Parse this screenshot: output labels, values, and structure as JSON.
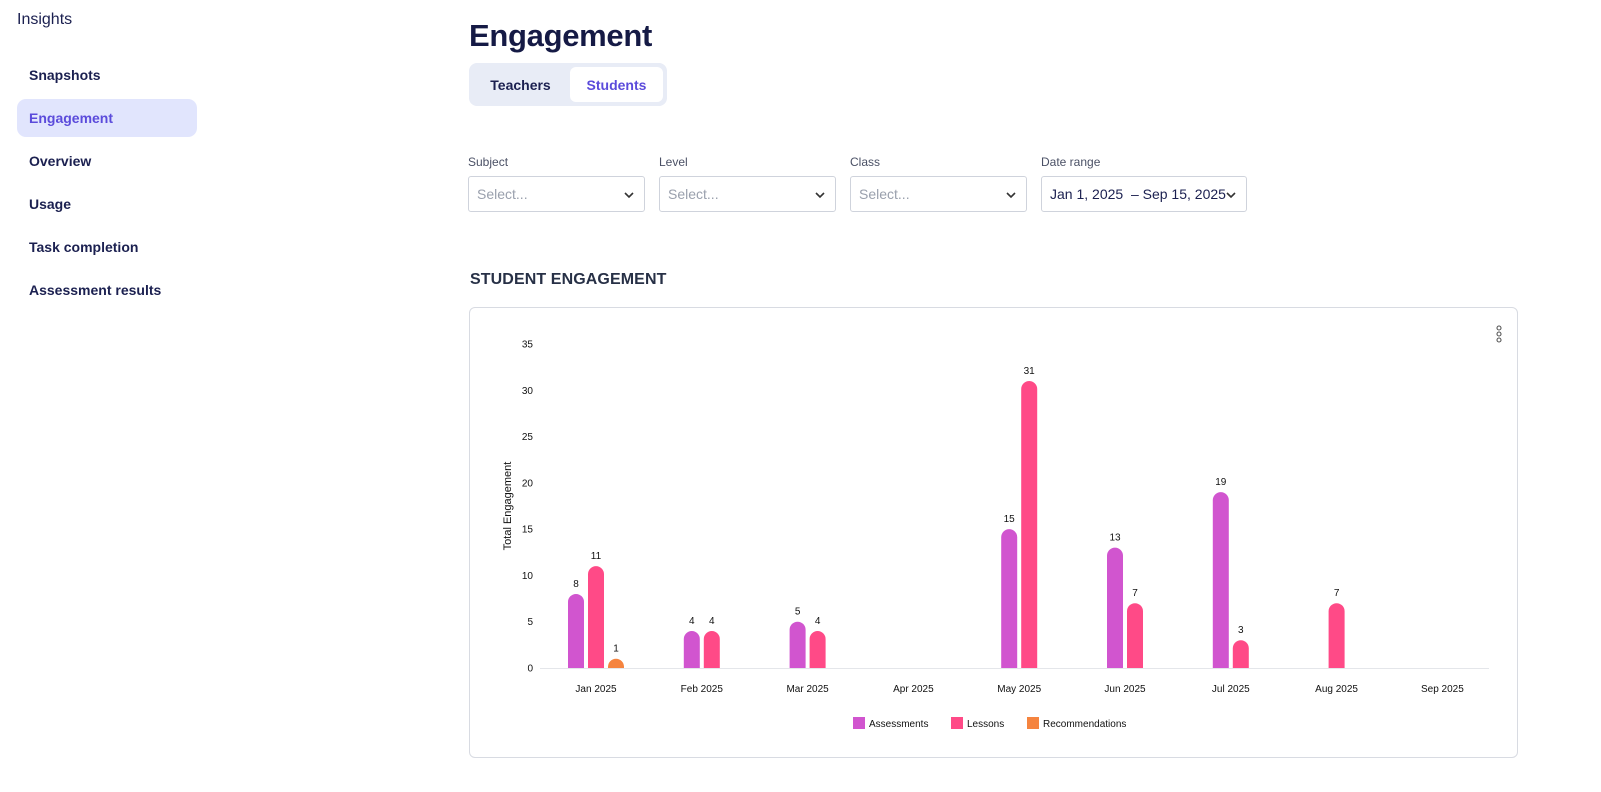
{
  "sidebar": {
    "brand": "Insights",
    "items": [
      {
        "label": "Snapshots"
      },
      {
        "label": "Engagement"
      },
      {
        "label": "Overview"
      },
      {
        "label": "Usage"
      },
      {
        "label": "Task completion"
      },
      {
        "label": "Assessment results"
      }
    ],
    "active_index": 1
  },
  "header": {
    "title": "Engagement",
    "tabs": [
      {
        "label": "Teachers"
      },
      {
        "label": "Students"
      }
    ],
    "active_tab": "Students"
  },
  "filters": {
    "subject": {
      "label": "Subject",
      "placeholder": "Select..."
    },
    "level": {
      "label": "Level",
      "placeholder": "Select..."
    },
    "class": {
      "label": "Class",
      "placeholder": "Select..."
    },
    "date_range": {
      "label": "Date range",
      "value": "Jan 1, 2025  – Sep 15, 2025"
    }
  },
  "section": {
    "title": "STUDENT ENGAGEMENT"
  },
  "icons": {
    "chevron": "chevron-down-icon",
    "menu": "more-vertical-icon"
  },
  "colors": {
    "accent": "#5b4bdb",
    "assessments": "#d155cf",
    "lessons": "#ff4a87",
    "recommendations": "#f5843f"
  },
  "chart_data": {
    "type": "bar",
    "title": "",
    "xlabel": "",
    "ylabel": "Total Engagement",
    "ylim": [
      0,
      35
    ],
    "yticks": [
      0,
      5,
      10,
      15,
      20,
      25,
      30,
      35
    ],
    "legend_position": "bottom",
    "grid": false,
    "categories": [
      "Jan 2025",
      "Feb 2025",
      "Mar 2025",
      "Apr 2025",
      "May 2025",
      "Jun 2025",
      "Jul 2025",
      "Aug 2025",
      "Sep 2025"
    ],
    "series": [
      {
        "name": "Assessments",
        "values": [
          8,
          4,
          5,
          0,
          15,
          13,
          19,
          0,
          0
        ]
      },
      {
        "name": "Lessons",
        "values": [
          11,
          4,
          4,
          0,
          31,
          7,
          3,
          7,
          0
        ]
      },
      {
        "name": "Recommendations",
        "values": [
          1,
          0,
          0,
          0,
          0,
          0,
          0,
          0,
          0
        ]
      }
    ]
  }
}
